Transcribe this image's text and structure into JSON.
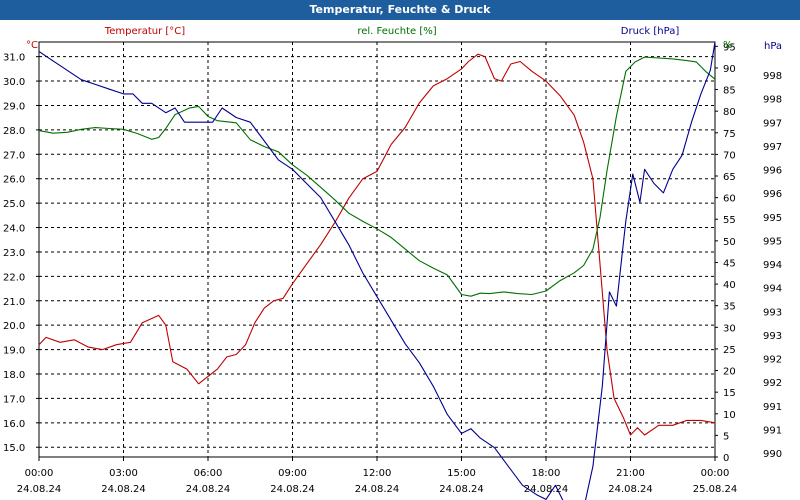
{
  "window": {
    "title": "Temperatur, Feuchte & Druck"
  },
  "chart_data": {
    "type": "line",
    "title": "Temperatur, Feuchte & Druck",
    "grid": true,
    "xlabel": "",
    "x_ticks": [
      {
        "time": "00:00",
        "date": "24.08.24"
      },
      {
        "time": "03:00",
        "date": "24.08.24"
      },
      {
        "time": "06:00",
        "date": "24.08.24"
      },
      {
        "time": "09:00",
        "date": "24.08.24"
      },
      {
        "time": "12:00",
        "date": "24.08.24"
      },
      {
        "time": "15:00",
        "date": "24.08.24"
      },
      {
        "time": "18:00",
        "date": "24.08.24"
      },
      {
        "time": "21:00",
        "date": "24.08.24"
      },
      {
        "time": "00:00",
        "date": "25.08.24"
      }
    ],
    "x_range": [
      "24.08.24 00:00",
      "25.08.24 00:00"
    ],
    "axes": {
      "temperature": {
        "label": "Temperatur [°C]",
        "unit": "°C",
        "color": "#c00000",
        "range": [
          14.6,
          31.6
        ],
        "ticks": [
          "31.0",
          "30.0",
          "29.0",
          "28.0",
          "27.0",
          "26.0",
          "25.0",
          "24.0",
          "23.0",
          "22.0",
          "21.0",
          "20.0",
          "19.0",
          "18.0",
          "17.0",
          "16.0",
          "15.0"
        ],
        "tick_values": [
          31,
          30,
          29,
          28,
          27,
          26,
          25,
          24,
          23,
          22,
          21,
          20,
          19,
          18,
          17,
          16,
          15
        ]
      },
      "humidity": {
        "label": "rel. Feuchte [%]",
        "unit": "%",
        "color": "#007000",
        "range": [
          0,
          96
        ],
        "ticks": [
          "95",
          "90",
          "85",
          "80",
          "75",
          "70",
          "65",
          "60",
          "55",
          "50",
          "45",
          "40",
          "35",
          "30",
          "25",
          "20",
          "15",
          "10",
          "5",
          "0"
        ],
        "tick_values": [
          95,
          90,
          85,
          80,
          75,
          70,
          65,
          60,
          55,
          50,
          45,
          40,
          35,
          30,
          25,
          20,
          15,
          10,
          5,
          0
        ]
      },
      "pressure": {
        "label": "Druck [hPa]",
        "unit": "hPa",
        "color": "#000090",
        "range": [
          989.8,
          998.6
        ],
        "ticks": [
          "998",
          "998",
          "997",
          "997",
          "996",
          "996",
          "995",
          "995",
          "994",
          "994",
          "993",
          "993",
          "992",
          "992",
          "991",
          "991",
          "990"
        ]
      }
    },
    "series": [
      {
        "name": "Temperatur [°C]",
        "axis": "temperature",
        "color": "#c00000",
        "points": [
          [
            "24.08.24 00:00",
            19.2
          ],
          [
            "24.08.24 00:15",
            19.5
          ],
          [
            "24.08.24 00:45",
            19.3
          ],
          [
            "24.08.24 01:15",
            19.4
          ],
          [
            "24.08.24 01:45",
            19.1
          ],
          [
            "24.08.24 02:15",
            19.0
          ],
          [
            "24.08.24 02:45",
            19.2
          ],
          [
            "24.08.24 03:15",
            19.3
          ],
          [
            "24.08.24 03:40",
            20.1
          ],
          [
            "24.08.24 04:15",
            20.4
          ],
          [
            "24.08.24 04:30",
            20.0
          ],
          [
            "24.08.24 04:45",
            18.5
          ],
          [
            "24.08.24 05:15",
            18.2
          ],
          [
            "24.08.24 05:40",
            17.6
          ],
          [
            "24.08.24 06:00",
            17.9
          ],
          [
            "24.08.24 06:20",
            18.2
          ],
          [
            "24.08.24 06:40",
            18.7
          ],
          [
            "24.08.24 07:00",
            18.8
          ],
          [
            "24.08.24 07:20",
            19.2
          ],
          [
            "24.08.24 07:40",
            20.1
          ],
          [
            "24.08.24 08:00",
            20.7
          ],
          [
            "24.08.24 08:20",
            21.0
          ],
          [
            "24.08.24 08:40",
            21.1
          ],
          [
            "24.08.24 09:00",
            21.7
          ],
          [
            "24.08.24 09:30",
            22.5
          ],
          [
            "24.08.24 10:00",
            23.3
          ],
          [
            "24.08.24 10:30",
            24.2
          ],
          [
            "24.08.24 11:00",
            25.2
          ],
          [
            "24.08.24 11:30",
            26.0
          ],
          [
            "24.08.24 12:00",
            26.3
          ],
          [
            "24.08.24 12:30",
            27.4
          ],
          [
            "24.08.24 13:00",
            28.1
          ],
          [
            "24.08.24 13:30",
            29.1
          ],
          [
            "24.08.24 14:00",
            29.8
          ],
          [
            "24.08.24 14:30",
            30.1
          ],
          [
            "24.08.24 15:00",
            30.5
          ],
          [
            "24.08.24 15:15",
            30.8
          ],
          [
            "24.08.24 15:35",
            31.1
          ],
          [
            "24.08.24 15:50",
            31.0
          ],
          [
            "24.08.24 16:10",
            30.1
          ],
          [
            "24.08.24 16:25",
            30.0
          ],
          [
            "24.08.24 16:45",
            30.7
          ],
          [
            "24.08.24 17:05",
            30.8
          ],
          [
            "24.08.24 17:30",
            30.4
          ],
          [
            "24.08.24 18:00",
            30.0
          ],
          [
            "24.08.24 18:30",
            29.4
          ],
          [
            "24.08.24 19:00",
            28.6
          ],
          [
            "24.08.24 19:20",
            27.5
          ],
          [
            "24.08.24 19:40",
            26.0
          ],
          [
            "24.08.24 19:55",
            22.5
          ],
          [
            "24.08.24 20:10",
            19.0
          ],
          [
            "24.08.24 20:25",
            17.0
          ],
          [
            "24.08.24 20:45",
            16.2
          ],
          [
            "24.08.24 21:00",
            15.5
          ],
          [
            "24.08.24 21:15",
            15.8
          ],
          [
            "24.08.24 21:30",
            15.5
          ],
          [
            "24.08.24 22:00",
            15.9
          ],
          [
            "24.08.24 22:30",
            15.9
          ],
          [
            "24.08.24 23:00",
            16.1
          ],
          [
            "24.08.24 23:30",
            16.1
          ],
          [
            "25.08.24 00:00",
            16.0
          ]
        ]
      },
      {
        "name": "rel. Feuchte [%]",
        "axis": "humidity",
        "color": "#007000",
        "points": [
          [
            "24.08.24 00:00",
            75.5
          ],
          [
            "24.08.24 00:30",
            74.9
          ],
          [
            "24.08.24 01:00",
            75.1
          ],
          [
            "24.08.24 01:30",
            75.8
          ],
          [
            "24.08.24 02:00",
            76.2
          ],
          [
            "24.08.24 02:30",
            76.0
          ],
          [
            "24.08.24 03:00",
            75.8
          ],
          [
            "24.08.24 03:30",
            74.8
          ],
          [
            "24.08.24 04:00",
            73.5
          ],
          [
            "24.08.24 04:15",
            73.9
          ],
          [
            "24.08.24 04:30",
            76.0
          ],
          [
            "24.08.24 04:50",
            79.2
          ],
          [
            "24.08.24 05:20",
            80.7
          ],
          [
            "24.08.24 05:40",
            81.1
          ],
          [
            "24.08.24 06:00",
            78.8
          ],
          [
            "24.08.24 06:20",
            77.8
          ],
          [
            "24.08.24 07:00",
            77.3
          ],
          [
            "24.08.24 07:30",
            73.4
          ],
          [
            "24.08.24 08:00",
            71.8
          ],
          [
            "24.08.24 08:30",
            70.6
          ],
          [
            "24.08.24 09:00",
            67.6
          ],
          [
            "24.08.24 09:30",
            65.2
          ],
          [
            "24.08.24 10:00",
            62.4
          ],
          [
            "24.08.24 10:30",
            59.5
          ],
          [
            "24.08.24 11:00",
            56.4
          ],
          [
            "24.08.24 11:30",
            54.5
          ],
          [
            "24.08.24 12:00",
            52.8
          ],
          [
            "24.08.24 12:30",
            50.8
          ],
          [
            "24.08.24 13:00",
            48.1
          ],
          [
            "24.08.24 13:30",
            45.4
          ],
          [
            "24.08.24 14:00",
            43.7
          ],
          [
            "24.08.24 14:30",
            42.1
          ],
          [
            "24.08.24 15:00",
            37.6
          ],
          [
            "24.08.24 15:20",
            37.2
          ],
          [
            "24.08.24 15:40",
            37.9
          ],
          [
            "24.08.24 16:00",
            37.8
          ],
          [
            "24.08.24 16:30",
            38.2
          ],
          [
            "24.08.24 17:00",
            37.8
          ],
          [
            "24.08.24 17:30",
            37.6
          ],
          [
            "24.08.24 18:00",
            38.4
          ],
          [
            "24.08.24 18:30",
            40.8
          ],
          [
            "24.08.24 19:00",
            42.6
          ],
          [
            "24.08.24 19:20",
            44.3
          ],
          [
            "24.08.24 19:40",
            48.1
          ],
          [
            "24.08.24 19:55",
            55.4
          ],
          [
            "24.08.24 20:10",
            66.2
          ],
          [
            "24.08.24 20:30",
            78.8
          ],
          [
            "24.08.24 20:50",
            89.2
          ],
          [
            "24.08.24 21:10",
            91.4
          ],
          [
            "24.08.24 21:30",
            92.5
          ],
          [
            "24.08.24 22:00",
            92.3
          ],
          [
            "24.08.24 22:30",
            92.1
          ],
          [
            "24.08.24 23:00",
            91.7
          ],
          [
            "24.08.24 23:20",
            91.4
          ],
          [
            "24.08.24 23:40",
            89.2
          ],
          [
            "25.08.24 00:00",
            87.4
          ]
        ]
      },
      {
        "name": "Druck [hPa]",
        "axis": "pressure",
        "color": "#000090",
        "points": [
          [
            "24.08.24 00:00",
            998.4
          ],
          [
            "24.08.24 00:30",
            998.2
          ],
          [
            "24.08.24 01:00",
            998.0
          ],
          [
            "24.08.24 01:30",
            997.8
          ],
          [
            "24.08.24 02:00",
            997.7
          ],
          [
            "24.08.24 02:30",
            997.6
          ],
          [
            "24.08.24 03:00",
            997.5
          ],
          [
            "24.08.24 03:20",
            997.5
          ],
          [
            "24.08.24 03:40",
            997.3
          ],
          [
            "24.08.24 04:00",
            997.3
          ],
          [
            "24.08.24 04:30",
            997.1
          ],
          [
            "24.08.24 04:50",
            997.2
          ],
          [
            "24.08.24 05:10",
            996.9
          ],
          [
            "24.08.24 05:40",
            996.9
          ],
          [
            "24.08.24 06:10",
            996.9
          ],
          [
            "24.08.24 06:30",
            997.2
          ],
          [
            "24.08.24 07:00",
            997.0
          ],
          [
            "24.08.24 07:30",
            996.9
          ],
          [
            "24.08.24 08:00",
            996.5
          ],
          [
            "24.08.24 08:30",
            996.1
          ],
          [
            "24.08.24 09:00",
            995.9
          ],
          [
            "24.08.24 09:30",
            995.6
          ],
          [
            "24.08.24 10:00",
            995.3
          ],
          [
            "24.08.24 10:30",
            994.8
          ],
          [
            "24.08.24 11:00",
            994.3
          ],
          [
            "24.08.24 11:30",
            993.7
          ],
          [
            "24.08.24 12:00",
            993.2
          ],
          [
            "24.08.24 12:30",
            992.7
          ],
          [
            "24.08.24 13:00",
            992.2
          ],
          [
            "24.08.24 13:30",
            991.8
          ],
          [
            "24.08.24 14:00",
            991.3
          ],
          [
            "24.08.24 14:30",
            990.7
          ],
          [
            "24.08.24 15:00",
            990.3
          ],
          [
            "24.08.24 15:20",
            990.4
          ],
          [
            "24.08.24 15:40",
            990.2
          ],
          [
            "24.08.24 16:10",
            990.0
          ],
          [
            "24.08.24 16:40",
            989.6
          ],
          [
            "24.08.24 17:10",
            989.2
          ],
          [
            "24.08.24 17:40",
            989.0
          ],
          [
            "24.08.24 18:00",
            988.9
          ],
          [
            "24.08.24 18:20",
            989.2
          ],
          [
            "24.08.24 18:40",
            988.8
          ],
          [
            "24.08.24 19:00",
            988.6
          ],
          [
            "24.08.24 19:20",
            988.7
          ],
          [
            "24.08.24 19:40",
            989.6
          ],
          [
            "24.08.24 20:00",
            991.3
          ],
          [
            "24.08.24 20:15",
            993.3
          ],
          [
            "24.08.24 20:30",
            993.0
          ],
          [
            "24.08.24 20:50",
            994.8
          ],
          [
            "24.08.24 21:05",
            995.8
          ],
          [
            "24.08.24 21:20",
            995.2
          ],
          [
            "24.08.24 21:30",
            995.9
          ],
          [
            "24.08.24 21:50",
            995.6
          ],
          [
            "24.08.24 22:10",
            995.4
          ],
          [
            "24.08.24 22:30",
            995.9
          ],
          [
            "24.08.24 22:50",
            996.2
          ],
          [
            "24.08.24 23:10",
            996.9
          ],
          [
            "24.08.24 23:30",
            997.5
          ],
          [
            "24.08.24 23:50",
            998.0
          ],
          [
            "25.08.24 00:00",
            998.6
          ]
        ]
      }
    ]
  }
}
